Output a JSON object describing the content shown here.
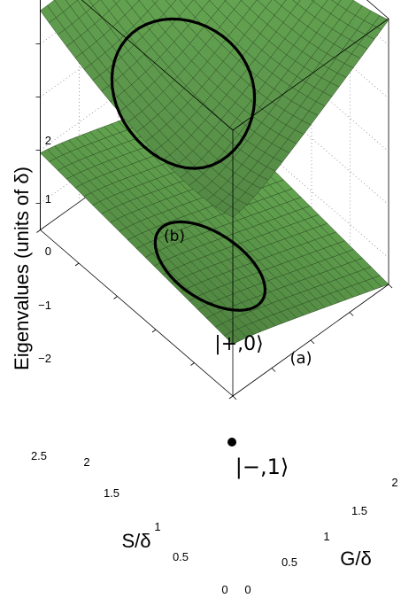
{
  "chart_data": {
    "type": "surface",
    "zlabel": "Eigenvalues (units of δ)",
    "xlabel": "G/δ",
    "ylabel": "S/δ",
    "xlim": [
      0,
      2
    ],
    "ylim": [
      0,
      2.5
    ],
    "zlim": [
      -2.5,
      2.5
    ],
    "x_ticks": [
      "0",
      "0.5",
      "1",
      "1.5",
      "2"
    ],
    "y_ticks": [
      "0",
      "0.5",
      "1",
      "1.5",
      "2",
      "2.5"
    ],
    "z_ticks": [
      "−2",
      "−1",
      "0",
      "1",
      "2"
    ],
    "surface_color": "#6aaa55",
    "mesh_color": "#2c4a22",
    "series": [
      {
        "label": "(b)",
        "values": "upper eigenvalue surface"
      },
      {
        "label": "(a)",
        "values": "lower eigenvalue surface"
      }
    ],
    "annotations": {
      "upper_curve": "(b)",
      "lower_curve": "(a)",
      "state_plus_zero": "|+,0⟩",
      "state_minus_one": "|−,1⟩"
    }
  }
}
